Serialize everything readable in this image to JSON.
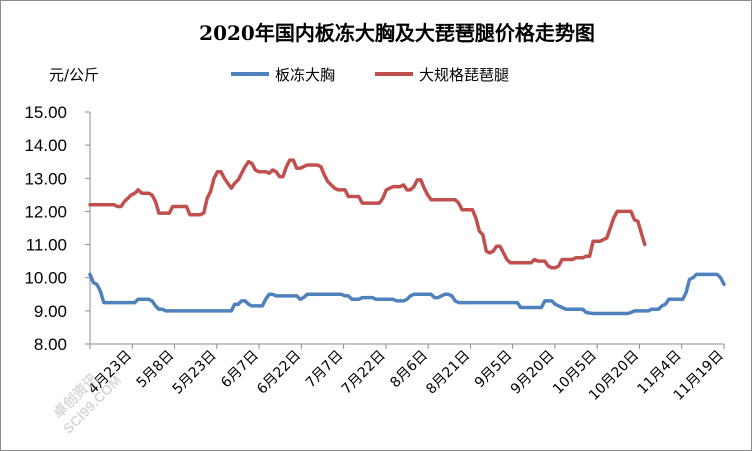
{
  "chart_data": {
    "type": "line",
    "title": "2020年国内板冻大胸及大琵琶腿价格走势图",
    "ylabel": "元/公斤",
    "ylim": [
      8.0,
      15.0
    ],
    "yticks": [
      "15.00",
      "14.00",
      "13.00",
      "12.00",
      "11.00",
      "10.00",
      "9.00",
      "8.00"
    ],
    "xticks": [
      "4月23日",
      "5月8日",
      "5月23日",
      "6月7日",
      "6月22日",
      "7月7日",
      "7月22日",
      "8月6日",
      "8月21日",
      "9月5日",
      "9月20日",
      "10月5日",
      "10月20日",
      "11月4日",
      "11月19日"
    ],
    "grid": false,
    "legend": "top",
    "series": [
      {
        "name": "板冻大胸",
        "color": "#4f81bd",
        "points": [
          [
            0,
            10.1
          ],
          [
            1,
            9.85
          ],
          [
            2,
            9.8
          ],
          [
            3,
            9.6
          ],
          [
            4,
            9.25
          ],
          [
            5,
            9.25
          ],
          [
            6,
            9.25
          ],
          [
            7,
            9.25
          ],
          [
            8,
            9.25
          ],
          [
            9,
            9.25
          ],
          [
            10,
            9.25
          ],
          [
            11,
            9.25
          ],
          [
            12,
            9.25
          ],
          [
            13,
            9.25
          ],
          [
            14,
            9.35
          ],
          [
            15,
            9.35
          ],
          [
            16,
            9.35
          ],
          [
            17,
            9.35
          ],
          [
            18,
            9.3
          ],
          [
            19,
            9.15
          ],
          [
            20,
            9.05
          ],
          [
            21,
            9.05
          ],
          [
            22,
            9.0
          ],
          [
            23,
            9.0
          ],
          [
            25,
            9.0
          ],
          [
            28,
            9.0
          ],
          [
            31,
            9.0
          ],
          [
            34,
            9.0
          ],
          [
            37,
            9.0
          ],
          [
            40,
            9.0
          ],
          [
            41,
            9.0
          ],
          [
            42,
            9.2
          ],
          [
            43,
            9.2
          ],
          [
            44,
            9.3
          ],
          [
            45,
            9.3
          ],
          [
            46,
            9.2
          ],
          [
            47,
            9.15
          ],
          [
            48,
            9.15
          ],
          [
            50,
            9.15
          ],
          [
            51,
            9.35
          ],
          [
            52,
            9.5
          ],
          [
            53,
            9.5
          ],
          [
            54,
            9.45
          ],
          [
            55,
            9.45
          ],
          [
            57,
            9.45
          ],
          [
            59,
            9.45
          ],
          [
            60,
            9.45
          ],
          [
            61,
            9.35
          ],
          [
            62,
            9.4
          ],
          [
            63,
            9.5
          ],
          [
            64,
            9.5
          ],
          [
            67,
            9.5
          ],
          [
            70,
            9.5
          ],
          [
            73,
            9.5
          ],
          [
            74,
            9.45
          ],
          [
            75,
            9.45
          ],
          [
            76,
            9.35
          ],
          [
            78,
            9.35
          ],
          [
            79,
            9.4
          ],
          [
            80,
            9.4
          ],
          [
            82,
            9.4
          ],
          [
            83,
            9.35
          ],
          [
            86,
            9.35
          ],
          [
            88,
            9.35
          ],
          [
            89,
            9.3
          ],
          [
            91,
            9.3
          ],
          [
            92,
            9.35
          ],
          [
            93,
            9.45
          ],
          [
            94,
            9.5
          ],
          [
            95,
            9.5
          ],
          [
            99,
            9.5
          ],
          [
            100,
            9.4
          ],
          [
            101,
            9.4
          ],
          [
            102,
            9.45
          ],
          [
            103,
            9.5
          ],
          [
            104,
            9.5
          ],
          [
            105,
            9.45
          ],
          [
            106,
            9.3
          ],
          [
            107,
            9.25
          ],
          [
            110,
            9.25
          ],
          [
            114,
            9.25
          ],
          [
            118,
            9.25
          ],
          [
            122,
            9.25
          ],
          [
            124,
            9.25
          ],
          [
            125,
            9.1
          ],
          [
            128,
            9.1
          ],
          [
            130,
            9.1
          ],
          [
            131,
            9.1
          ],
          [
            132,
            9.3
          ],
          [
            134,
            9.3
          ],
          [
            135,
            9.2
          ],
          [
            136,
            9.15
          ],
          [
            137,
            9.1
          ],
          [
            138,
            9.05
          ],
          [
            140,
            9.05
          ],
          [
            142,
            9.05
          ],
          [
            143,
            9.05
          ],
          [
            144,
            8.95
          ],
          [
            146,
            8.92
          ],
          [
            150,
            8.92
          ],
          [
            154,
            8.92
          ],
          [
            156,
            8.92
          ],
          [
            157,
            8.95
          ],
          [
            158,
            9.0
          ],
          [
            160,
            9.0
          ],
          [
            162,
            9.0
          ],
          [
            163,
            9.05
          ],
          [
            165,
            9.05
          ],
          [
            166,
            9.15
          ],
          [
            167,
            9.2
          ],
          [
            168,
            9.35
          ],
          [
            170,
            9.35
          ],
          [
            172,
            9.35
          ],
          [
            173,
            9.55
          ],
          [
            174,
            9.95
          ],
          [
            175,
            10.0
          ],
          [
            176,
            10.1
          ],
          [
            178,
            10.1
          ],
          [
            180,
            10.1
          ],
          [
            182,
            10.1
          ],
          [
            183,
            10.0
          ],
          [
            184,
            9.8
          ]
        ]
      },
      {
        "name": "大规格琵琶腿",
        "color": "#c0504d",
        "points": [
          [
            0,
            12.2
          ],
          [
            2,
            12.2
          ],
          [
            4,
            12.2
          ],
          [
            6,
            12.2
          ],
          [
            7,
            12.2
          ],
          [
            8,
            12.15
          ],
          [
            9,
            12.15
          ],
          [
            10,
            12.3
          ],
          [
            11,
            12.4
          ],
          [
            12,
            12.5
          ],
          [
            13,
            12.55
          ],
          [
            14,
            12.65
          ],
          [
            15,
            12.55
          ],
          [
            16,
            12.55
          ],
          [
            17,
            12.55
          ],
          [
            18,
            12.5
          ],
          [
            19,
            12.3
          ],
          [
            20,
            11.95
          ],
          [
            21,
            11.95
          ],
          [
            22,
            11.95
          ],
          [
            23,
            11.95
          ],
          [
            24,
            12.15
          ],
          [
            25,
            12.15
          ],
          [
            27,
            12.15
          ],
          [
            28,
            12.15
          ],
          [
            29,
            11.9
          ],
          [
            30,
            11.9
          ],
          [
            32,
            11.9
          ],
          [
            33,
            11.95
          ],
          [
            34,
            12.4
          ],
          [
            35,
            12.6
          ],
          [
            36,
            13.0
          ],
          [
            37,
            13.2
          ],
          [
            38,
            13.2
          ],
          [
            39,
            13.0
          ],
          [
            40,
            12.85
          ],
          [
            41,
            12.7
          ],
          [
            42,
            12.85
          ],
          [
            43,
            12.95
          ],
          [
            44,
            13.15
          ],
          [
            45,
            13.35
          ],
          [
            46,
            13.5
          ],
          [
            47,
            13.45
          ],
          [
            48,
            13.25
          ],
          [
            49,
            13.2
          ],
          [
            51,
            13.2
          ],
          [
            52,
            13.15
          ],
          [
            53,
            13.25
          ],
          [
            54,
            13.2
          ],
          [
            55,
            13.05
          ],
          [
            56,
            13.05
          ],
          [
            57,
            13.35
          ],
          [
            58,
            13.55
          ],
          [
            59,
            13.55
          ],
          [
            60,
            13.3
          ],
          [
            61,
            13.3
          ],
          [
            62,
            13.35
          ],
          [
            63,
            13.4
          ],
          [
            64,
            13.4
          ],
          [
            66,
            13.4
          ],
          [
            67,
            13.35
          ],
          [
            68,
            13.1
          ],
          [
            69,
            12.9
          ],
          [
            70,
            12.8
          ],
          [
            71,
            12.7
          ],
          [
            72,
            12.65
          ],
          [
            73,
            12.65
          ],
          [
            74,
            12.65
          ],
          [
            75,
            12.45
          ],
          [
            76,
            12.45
          ],
          [
            77,
            12.45
          ],
          [
            78,
            12.45
          ],
          [
            79,
            12.25
          ],
          [
            82,
            12.25
          ],
          [
            84,
            12.25
          ],
          [
            85,
            12.4
          ],
          [
            86,
            12.65
          ],
          [
            87,
            12.7
          ],
          [
            88,
            12.75
          ],
          [
            89,
            12.75
          ],
          [
            90,
            12.75
          ],
          [
            91,
            12.8
          ],
          [
            92,
            12.65
          ],
          [
            93,
            12.65
          ],
          [
            94,
            12.75
          ],
          [
            95,
            12.95
          ],
          [
            96,
            12.95
          ],
          [
            97,
            12.7
          ],
          [
            98,
            12.5
          ],
          [
            99,
            12.35
          ],
          [
            100,
            12.35
          ],
          [
            102,
            12.35
          ],
          [
            104,
            12.35
          ],
          [
            106,
            12.35
          ],
          [
            107,
            12.25
          ],
          [
            108,
            12.05
          ],
          [
            110,
            12.05
          ],
          [
            111,
            12.05
          ],
          [
            112,
            11.8
          ],
          [
            113,
            11.4
          ],
          [
            114,
            11.3
          ],
          [
            115,
            10.8
          ],
          [
            116,
            10.75
          ],
          [
            117,
            10.8
          ],
          [
            118,
            10.95
          ],
          [
            119,
            10.95
          ],
          [
            120,
            10.75
          ],
          [
            121,
            10.55
          ],
          [
            122,
            10.45
          ],
          [
            124,
            10.45
          ],
          [
            126,
            10.45
          ],
          [
            128,
            10.45
          ],
          [
            129,
            10.55
          ],
          [
            130,
            10.5
          ],
          [
            131,
            10.5
          ],
          [
            132,
            10.5
          ],
          [
            133,
            10.35
          ],
          [
            134,
            10.3
          ],
          [
            135,
            10.3
          ],
          [
            136,
            10.35
          ],
          [
            137,
            10.55
          ],
          [
            138,
            10.55
          ],
          [
            140,
            10.55
          ],
          [
            141,
            10.6
          ],
          [
            142,
            10.6
          ],
          [
            143,
            10.6
          ],
          [
            144,
            10.65
          ],
          [
            145,
            10.65
          ],
          [
            146,
            11.1
          ],
          [
            147,
            11.1
          ],
          [
            148,
            11.1
          ],
          [
            149,
            11.15
          ],
          [
            150,
            11.2
          ],
          [
            151,
            11.5
          ],
          [
            152,
            11.8
          ],
          [
            153,
            12.0
          ],
          [
            155,
            12.0
          ],
          [
            157,
            12.0
          ],
          [
            158,
            11.75
          ],
          [
            159,
            11.7
          ],
          [
            160,
            11.35
          ],
          [
            161,
            11.0
          ]
        ]
      }
    ]
  },
  "watermark": {
    "line1": "卓创资讯",
    "line2": "SCI99.COM"
  }
}
